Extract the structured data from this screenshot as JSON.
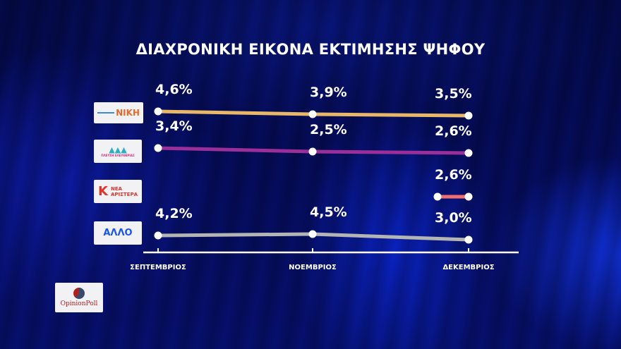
{
  "title": "ΔΙΑΧΡΟΝΙΚΗ ΕΙΚΟΝΑ ΕΚΤΙΜΗΣΗΣ ΨΗΦΟΥ",
  "logos": {
    "niki": "ΝΙΚΗ",
    "plefsi": "ΠΛΕΥΣΗ ΕΛΕΥΘΕΡΙΑΣ",
    "nea_aristera_1": "ΝΕΑ",
    "nea_aristera_2": "ΑΡΙΣΤΕΡΑ",
    "allo": "ΑΛΛΟ",
    "pollster": "OpinionPoll"
  },
  "chart_data": {
    "type": "line",
    "title": "ΔΙΑΧΡΟΝΙΚΗ ΕΙΚΟΝΑ ΕΚΤΙΜΗΣΗΣ ΨΗΦΟΥ",
    "categories": [
      "ΣΕΠΤΕΜΒΡΙΟΣ",
      "ΝΟΕΜΒΡΙΟΣ",
      "ΔΕΚΕΜΒΡΙΟΣ"
    ],
    "xlabel": "",
    "ylabel": "",
    "series": [
      {
        "name": "ΝΙΚΗ",
        "color": "#e8b868",
        "values": [
          4.6,
          3.9,
          3.5
        ],
        "labels": [
          "4,6%",
          "3,9%",
          "3,5%"
        ]
      },
      {
        "name": "ΠΛΕΥΣΗ ΕΛΕΥΘΕΡΙΑΣ",
        "color": "#9b2f9a",
        "values": [
          3.4,
          2.5,
          2.6
        ],
        "labels": [
          "3,4%",
          "2,5%",
          "2,6%"
        ]
      },
      {
        "name": "ΝΕΑ ΑΡΙΣΤΕΡΑ",
        "color": "#f07070",
        "values": [
          null,
          null,
          2.6
        ],
        "labels": [
          "",
          "",
          "2,6%"
        ]
      },
      {
        "name": "ΑΛΛΟ",
        "color": "#b4b4b4",
        "values": [
          4.2,
          4.5,
          3.0
        ],
        "labels": [
          "4,2%",
          "4,5%",
          "3,0%"
        ]
      }
    ],
    "grid": false,
    "legend": "logos on left"
  }
}
